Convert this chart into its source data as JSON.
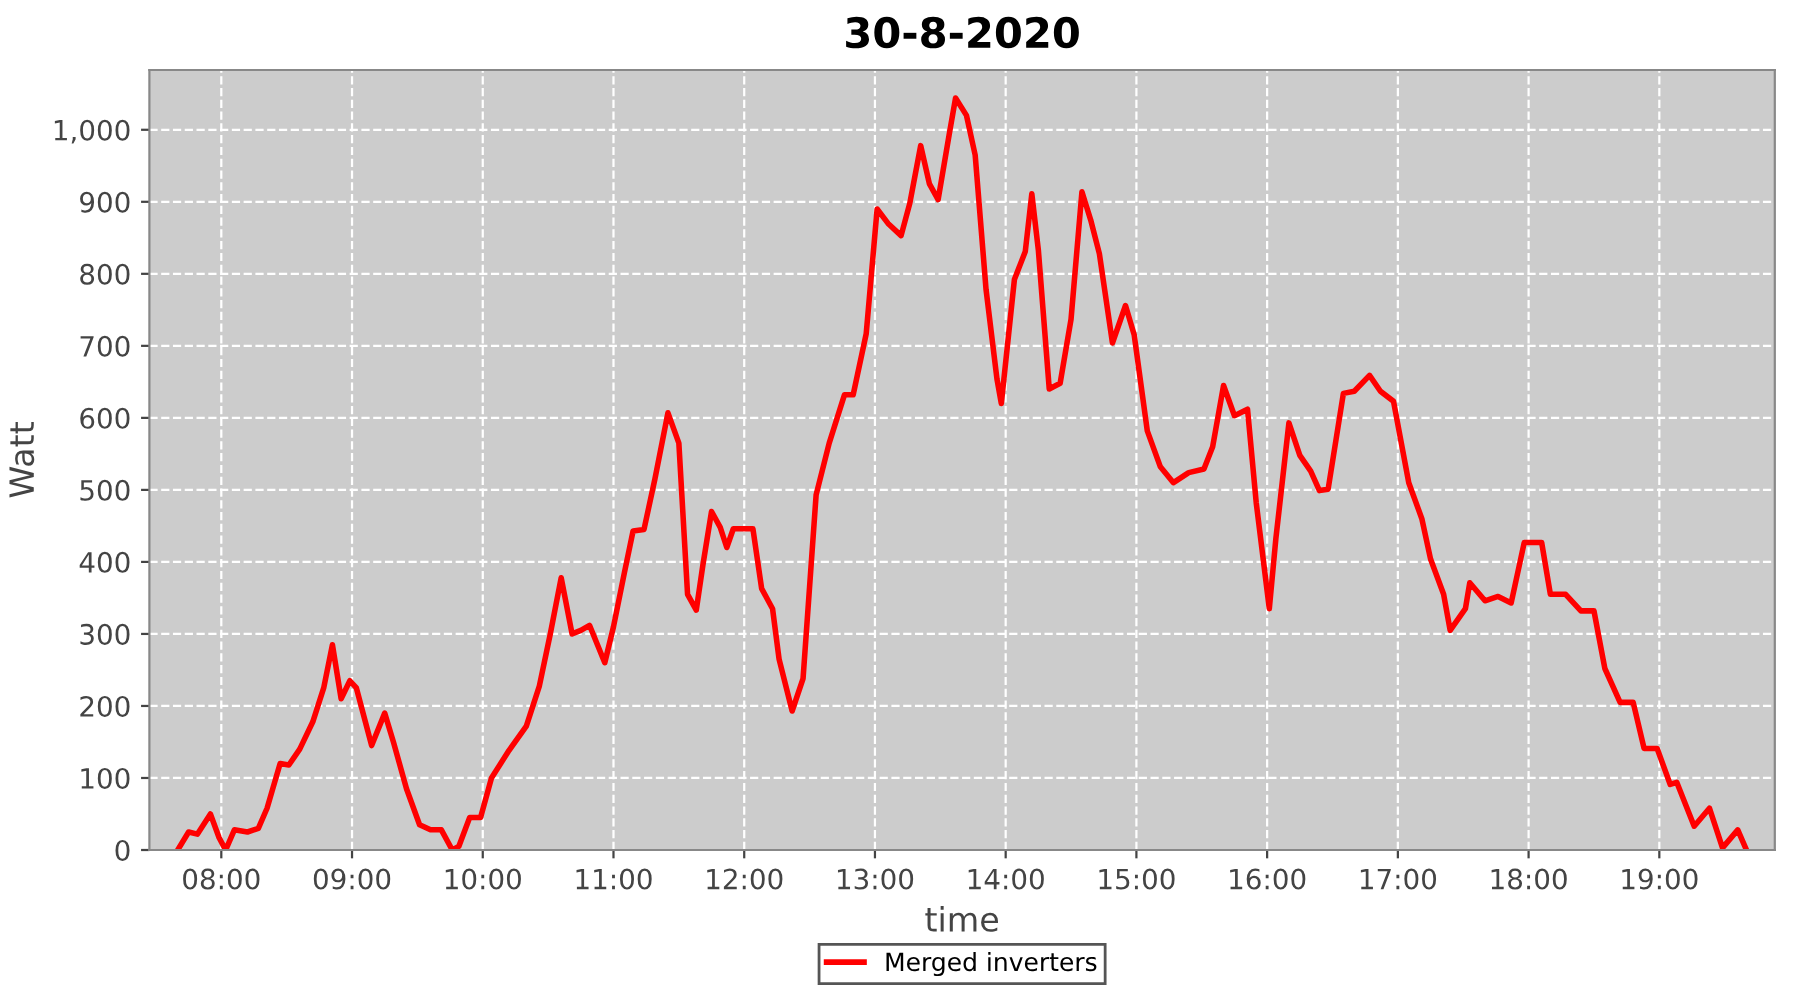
{
  "chart_data": {
    "type": "line",
    "title": "30-8-2020",
    "xlabel": "time",
    "ylabel": "Watt",
    "x": [
      "2020-08-30T07:40",
      "2020-08-30T07:45",
      "2020-08-30T07:49",
      "2020-08-30T07:55",
      "2020-08-30T07:59",
      "2020-08-30T08:02",
      "2020-08-30T08:06",
      "2020-08-30T08:12",
      "2020-08-30T08:17",
      "2020-08-30T08:21",
      "2020-08-30T08:27",
      "2020-08-30T08:31",
      "2020-08-30T08:36",
      "2020-08-30T08:42",
      "2020-08-30T08:47",
      "2020-08-30T08:51",
      "2020-08-30T08:55",
      "2020-08-30T08:59",
      "2020-08-30T09:02",
      "2020-08-30T09:09",
      "2020-08-30T09:15",
      "2020-08-30T09:19",
      "2020-08-30T09:25",
      "2020-08-30T09:31",
      "2020-08-30T09:36",
      "2020-08-30T09:41",
      "2020-08-30T09:46",
      "2020-08-30T09:49",
      "2020-08-30T09:54",
      "2020-08-30T09:59",
      "2020-08-30T10:04",
      "2020-08-30T10:12",
      "2020-08-30T10:20",
      "2020-08-30T10:26",
      "2020-08-30T10:31",
      "2020-08-30T10:36",
      "2020-08-30T10:41",
      "2020-08-30T10:45",
      "2020-08-30T10:49",
      "2020-08-30T10:56",
      "2020-08-30T11:00",
      "2020-08-30T11:05",
      "2020-08-30T11:09",
      "2020-08-30T11:14",
      "2020-08-30T11:19",
      "2020-08-30T11:25",
      "2020-08-30T11:30",
      "2020-08-30T11:34",
      "2020-08-30T11:38",
      "2020-08-30T11:41",
      "2020-08-30T11:45",
      "2020-08-30T11:49",
      "2020-08-30T11:52",
      "2020-08-30T11:55",
      "2020-08-30T12:01",
      "2020-08-30T12:04",
      "2020-08-30T12:08",
      "2020-08-30T12:13",
      "2020-08-30T12:16",
      "2020-08-30T12:22",
      "2020-08-30T12:27",
      "2020-08-30T12:33",
      "2020-08-30T12:39",
      "2020-08-30T12:46",
      "2020-08-30T12:50",
      "2020-08-30T12:56",
      "2020-08-30T13:01",
      "2020-08-30T13:06",
      "2020-08-30T13:12",
      "2020-08-30T13:16",
      "2020-08-30T13:21",
      "2020-08-30T13:25",
      "2020-08-30T13:29",
      "2020-08-30T13:34",
      "2020-08-30T13:37",
      "2020-08-30T13:42",
      "2020-08-30T13:46",
      "2020-08-30T13:51",
      "2020-08-30T13:56",
      "2020-08-30T13:58",
      "2020-08-30T14:04",
      "2020-08-30T14:09",
      "2020-08-30T14:12",
      "2020-08-30T14:15",
      "2020-08-30T14:20",
      "2020-08-30T14:25",
      "2020-08-30T14:30",
      "2020-08-30T14:35",
      "2020-08-30T14:39",
      "2020-08-30T14:43",
      "2020-08-30T14:49",
      "2020-08-30T14:55",
      "2020-08-30T14:59",
      "2020-08-30T15:05",
      "2020-08-30T15:11",
      "2020-08-30T15:17",
      "2020-08-30T15:24",
      "2020-08-30T15:31",
      "2020-08-30T15:35",
      "2020-08-30T15:40",
      "2020-08-30T15:45",
      "2020-08-30T15:51",
      "2020-08-30T15:55",
      "2020-08-30T16:01",
      "2020-08-30T16:04",
      "2020-08-30T16:10",
      "2020-08-30T16:15",
      "2020-08-30T16:20",
      "2020-08-30T16:24",
      "2020-08-30T16:28",
      "2020-08-30T16:35",
      "2020-08-30T16:40",
      "2020-08-30T16:47",
      "2020-08-30T16:52",
      "2020-08-30T16:58",
      "2020-08-30T17:05",
      "2020-08-30T17:11",
      "2020-08-30T17:15",
      "2020-08-30T17:21",
      "2020-08-30T17:24",
      "2020-08-30T17:31",
      "2020-08-30T17:33",
      "2020-08-30T17:40",
      "2020-08-30T17:46",
      "2020-08-30T17:52",
      "2020-08-30T17:58",
      "2020-08-30T18:06",
      "2020-08-30T18:10",
      "2020-08-30T18:17",
      "2020-08-30T18:24",
      "2020-08-30T18:30",
      "2020-08-30T18:35",
      "2020-08-30T18:42",
      "2020-08-30T18:48",
      "2020-08-30T18:53",
      "2020-08-30T18:59",
      "2020-08-30T19:05",
      "2020-08-30T19:08",
      "2020-08-30T19:16",
      "2020-08-30T19:23",
      "2020-08-30T19:29",
      "2020-08-30T19:36",
      "2020-08-30T19:40"
    ],
    "series": [
      {
        "name": "Merged inverters",
        "color": "#ff0000",
        "values": [
          0,
          25,
          22,
          50,
          17,
          0,
          28,
          25,
          30,
          58,
          120,
          118,
          140,
          178,
          225,
          285,
          210,
          235,
          225,
          145,
          190,
          150,
          85,
          35,
          28,
          28,
          0,
          5,
          45,
          45,
          100,
          138,
          172,
          228,
          300,
          378,
          300,
          305,
          312,
          260,
          310,
          385,
          443,
          445,
          515,
          607,
          565,
          355,
          333,
          395,
          470,
          448,
          420,
          446,
          446,
          446,
          363,
          335,
          265,
          193,
          238,
          493,
          565,
          632,
          632,
          717,
          890,
          870,
          853,
          898,
          978,
          925,
          903,
          992,
          1044,
          1020,
          965,
          778,
          654,
          620,
          792,
          831,
          911,
          833,
          640,
          648,
          737,
          914,
          875,
          828,
          704,
          756,
          715,
          582,
          532,
          510,
          524,
          529,
          560,
          645,
          603,
          612,
          482,
          335,
          432,
          593,
          548,
          526,
          499,
          501,
          634,
          637,
          659,
          637,
          623,
          510,
          460,
          404,
          355,
          305,
          335,
          371,
          346,
          352,
          343,
          427,
          427,
          355,
          355,
          332,
          332,
          252,
          205,
          205,
          141,
          141,
          91,
          94,
          33,
          58,
          3,
          28,
          0
        ]
      }
    ],
    "xlim": [
      "2020-08-30T07:27",
      "2020-08-30T19:53"
    ],
    "xticks": [
      {
        "value": "2020-08-30T08:00",
        "label": "08:00"
      },
      {
        "value": "2020-08-30T09:00",
        "label": "09:00"
      },
      {
        "value": "2020-08-30T10:00",
        "label": "10:00"
      },
      {
        "value": "2020-08-30T11:00",
        "label": "11:00"
      },
      {
        "value": "2020-08-30T12:00",
        "label": "12:00"
      },
      {
        "value": "2020-08-30T13:00",
        "label": "13:00"
      },
      {
        "value": "2020-08-30T14:00",
        "label": "14:00"
      },
      {
        "value": "2020-08-30T15:00",
        "label": "15:00"
      },
      {
        "value": "2020-08-30T16:00",
        "label": "16:00"
      },
      {
        "value": "2020-08-30T17:00",
        "label": "17:00"
      },
      {
        "value": "2020-08-30T18:00",
        "label": "18:00"
      },
      {
        "value": "2020-08-30T19:00",
        "label": "19:00"
      }
    ],
    "ylim": [
      0,
      1083
    ],
    "yticks": [
      0,
      100,
      200,
      300,
      400,
      500,
      600,
      700,
      800,
      900,
      {
        "value": 1000,
        "label": "1,000"
      }
    ],
    "grid": true,
    "legend": "bottom",
    "marker": "none",
    "line_style": "solid"
  }
}
